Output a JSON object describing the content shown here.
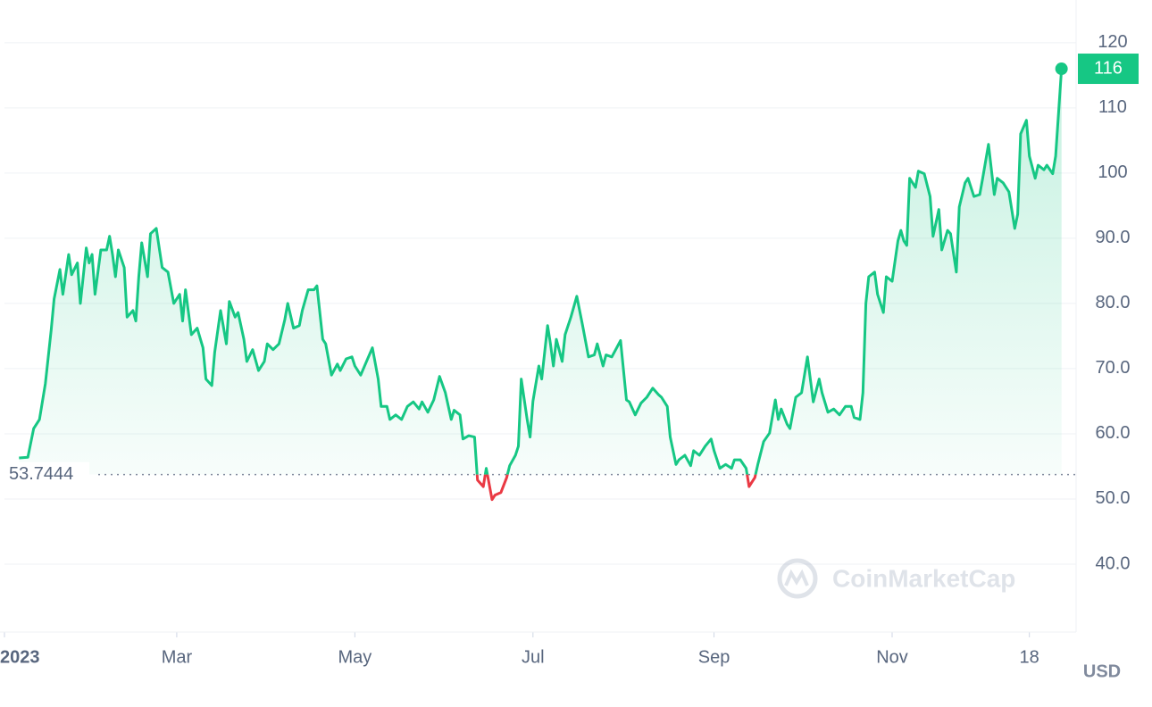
{
  "chart_data": {
    "type": "line",
    "x": [
      5,
      8,
      10,
      12,
      14,
      16,
      17,
      19,
      20,
      22,
      23,
      25,
      26,
      28,
      29,
      30,
      31,
      33,
      35,
      36,
      37,
      38,
      39,
      41,
      42,
      44,
      45,
      46,
      47,
      49,
      50,
      52,
      54,
      56,
      58,
      60,
      61,
      62,
      64,
      66,
      68,
      69,
      71,
      72,
      74,
      76,
      77,
      79,
      80,
      82,
      83,
      85,
      87,
      89,
      90,
      92,
      94,
      96,
      97,
      99,
      101,
      102,
      104,
      106,
      107,
      109,
      110,
      112,
      114,
      115,
      117,
      119,
      120,
      122,
      124,
      126,
      128,
      129,
      131,
      132,
      134,
      136,
      138,
      140,
      142,
      143,
      145,
      147,
      149,
      151,
      153,
      154,
      156,
      157,
      159,
      161,
      162,
      164,
      165,
      167,
      168,
      170,
      172,
      173,
      175,
      176,
      177,
      179,
      180,
      181,
      183,
      184,
      186,
      187,
      188,
      189,
      191,
      192,
      194,
      196,
      198,
      200,
      202,
      203,
      205,
      206,
      208,
      211,
      213,
      214,
      216,
      218,
      220,
      222,
      224,
      225,
      227,
      228,
      230,
      231,
      233,
      235,
      236,
      238,
      240,
      242,
      243,
      245,
      247,
      249,
      250,
      252,
      254,
      255,
      257,
      258,
      260,
      262,
      264,
      265,
      266,
      268,
      269,
      271,
      273,
      275,
      277,
      279,
      280,
      282,
      284,
      286,
      288,
      290,
      291,
      293,
      294,
      295,
      296,
      298,
      299,
      301,
      302,
      304,
      306,
      307,
      308,
      309,
      310,
      312,
      313,
      315,
      317,
      318,
      320,
      321,
      323,
      324,
      326,
      327,
      329,
      330,
      332,
      334,
      335,
      337,
      339,
      340,
      342,
      344,
      346,
      347,
      348,
      350,
      351,
      353,
      354,
      356,
      357,
      359,
      360,
      362
    ],
    "series": [
      {
        "color": "#16c784",
        "values": [
          56.3,
          56.4,
          60.8,
          62.2,
          67.7,
          75.9,
          80.7,
          85.2,
          81.4,
          87.5,
          84.4,
          86.2,
          80.0,
          88.5,
          86.2,
          87.5,
          81.4,
          88.2,
          88.2,
          90.3,
          87.5,
          84.1,
          88.2,
          85.5,
          77.9,
          78.9,
          77.3,
          84.1,
          89.3,
          84.1,
          90.7,
          91.5,
          85.5,
          84.8,
          80.0,
          81.4,
          77.3,
          82.1,
          75.2,
          76.2,
          73.2,
          68.4,
          67.4,
          72.5,
          78.9,
          73.8,
          80.3,
          77.9,
          78.6,
          74.5,
          71.1,
          72.9,
          69.7,
          71.1,
          73.8,
          72.9,
          73.8,
          77.5,
          80.0,
          76.2,
          76.6,
          78.9,
          82.1,
          82.1,
          82.7,
          74.5,
          73.8,
          69.0,
          70.7,
          69.7,
          71.5,
          71.8,
          70.4,
          69.0,
          71.1,
          73.2,
          68.4,
          64.2,
          64.2,
          62.2,
          62.9,
          62.2,
          64.2,
          64.9,
          63.8,
          64.9,
          63.3,
          65.2,
          68.8,
          66.3,
          62.2,
          63.6,
          62.9,
          59.2,
          59.7,
          59.5,
          52.9,
          51.9,
          54.7,
          49.9,
          50.6,
          51.0,
          53.3,
          55.1,
          56.7,
          58.1,
          68.4,
          62.2,
          59.5,
          65.0,
          70.4,
          68.4,
          76.6,
          73.8,
          70.4,
          74.5,
          71.1,
          75.2,
          77.9,
          81.1,
          76.6,
          71.8,
          72.1,
          73.8,
          70.4,
          72.1,
          71.8,
          74.3,
          65.2,
          64.9,
          62.9,
          64.7,
          65.6,
          67.0,
          66.0,
          65.6,
          64.2,
          59.5,
          55.3,
          56.0,
          56.7,
          55.1,
          57.4,
          56.7,
          58.1,
          59.2,
          57.4,
          54.7,
          55.3,
          54.7,
          56.0,
          56.0,
          54.7,
          51.9,
          53.3,
          55.3,
          58.8,
          60.1,
          65.2,
          62.2,
          63.8,
          61.5,
          60.8,
          65.6,
          66.3,
          71.8,
          64.9,
          68.4,
          66.3,
          63.3,
          63.8,
          62.9,
          64.2,
          64.2,
          62.5,
          62.2,
          66.3,
          80.0,
          84.1,
          84.8,
          81.4,
          78.6,
          84.1,
          83.4,
          89.6,
          91.2,
          89.6,
          88.9,
          99.2,
          97.8,
          100.3,
          99.9,
          96.4,
          90.3,
          94.4,
          88.2,
          91.2,
          90.7,
          84.8,
          94.8,
          98.5,
          99.2,
          96.4,
          96.7,
          99.2,
          104.4,
          96.7,
          99.2,
          98.5,
          97.1,
          91.5,
          93.7,
          106.0,
          108.1,
          102.6,
          99.2,
          101.2,
          100.5,
          101.2,
          99.9,
          102.6,
          116
        ]
      }
    ],
    "below_color": "#ea3943",
    "reference_value": 53.7444,
    "xlim": [
      0,
      367
    ],
    "xticks": [
      {
        "value": 0,
        "label": "2023"
      },
      {
        "value": 59,
        "label": "Mar"
      },
      {
        "value": 120,
        "label": "May"
      },
      {
        "value": 181,
        "label": "Jul"
      },
      {
        "value": 243,
        "label": "Sep"
      },
      {
        "value": 304,
        "label": "Nov"
      },
      {
        "value": 351,
        "label": "18"
      }
    ],
    "ylim": [
      30,
      126
    ],
    "yticks": [
      {
        "value": 40,
        "label": "40.0"
      },
      {
        "value": 50,
        "label": "50.0"
      },
      {
        "value": 60,
        "label": "60.0"
      },
      {
        "value": 70,
        "label": "70.0"
      },
      {
        "value": 80,
        "label": "80.0"
      },
      {
        "value": 90,
        "label": "90.0"
      },
      100,
      110,
      120
    ],
    "grid": true,
    "currency": "USD",
    "watermark": "CoinMarketCap"
  }
}
